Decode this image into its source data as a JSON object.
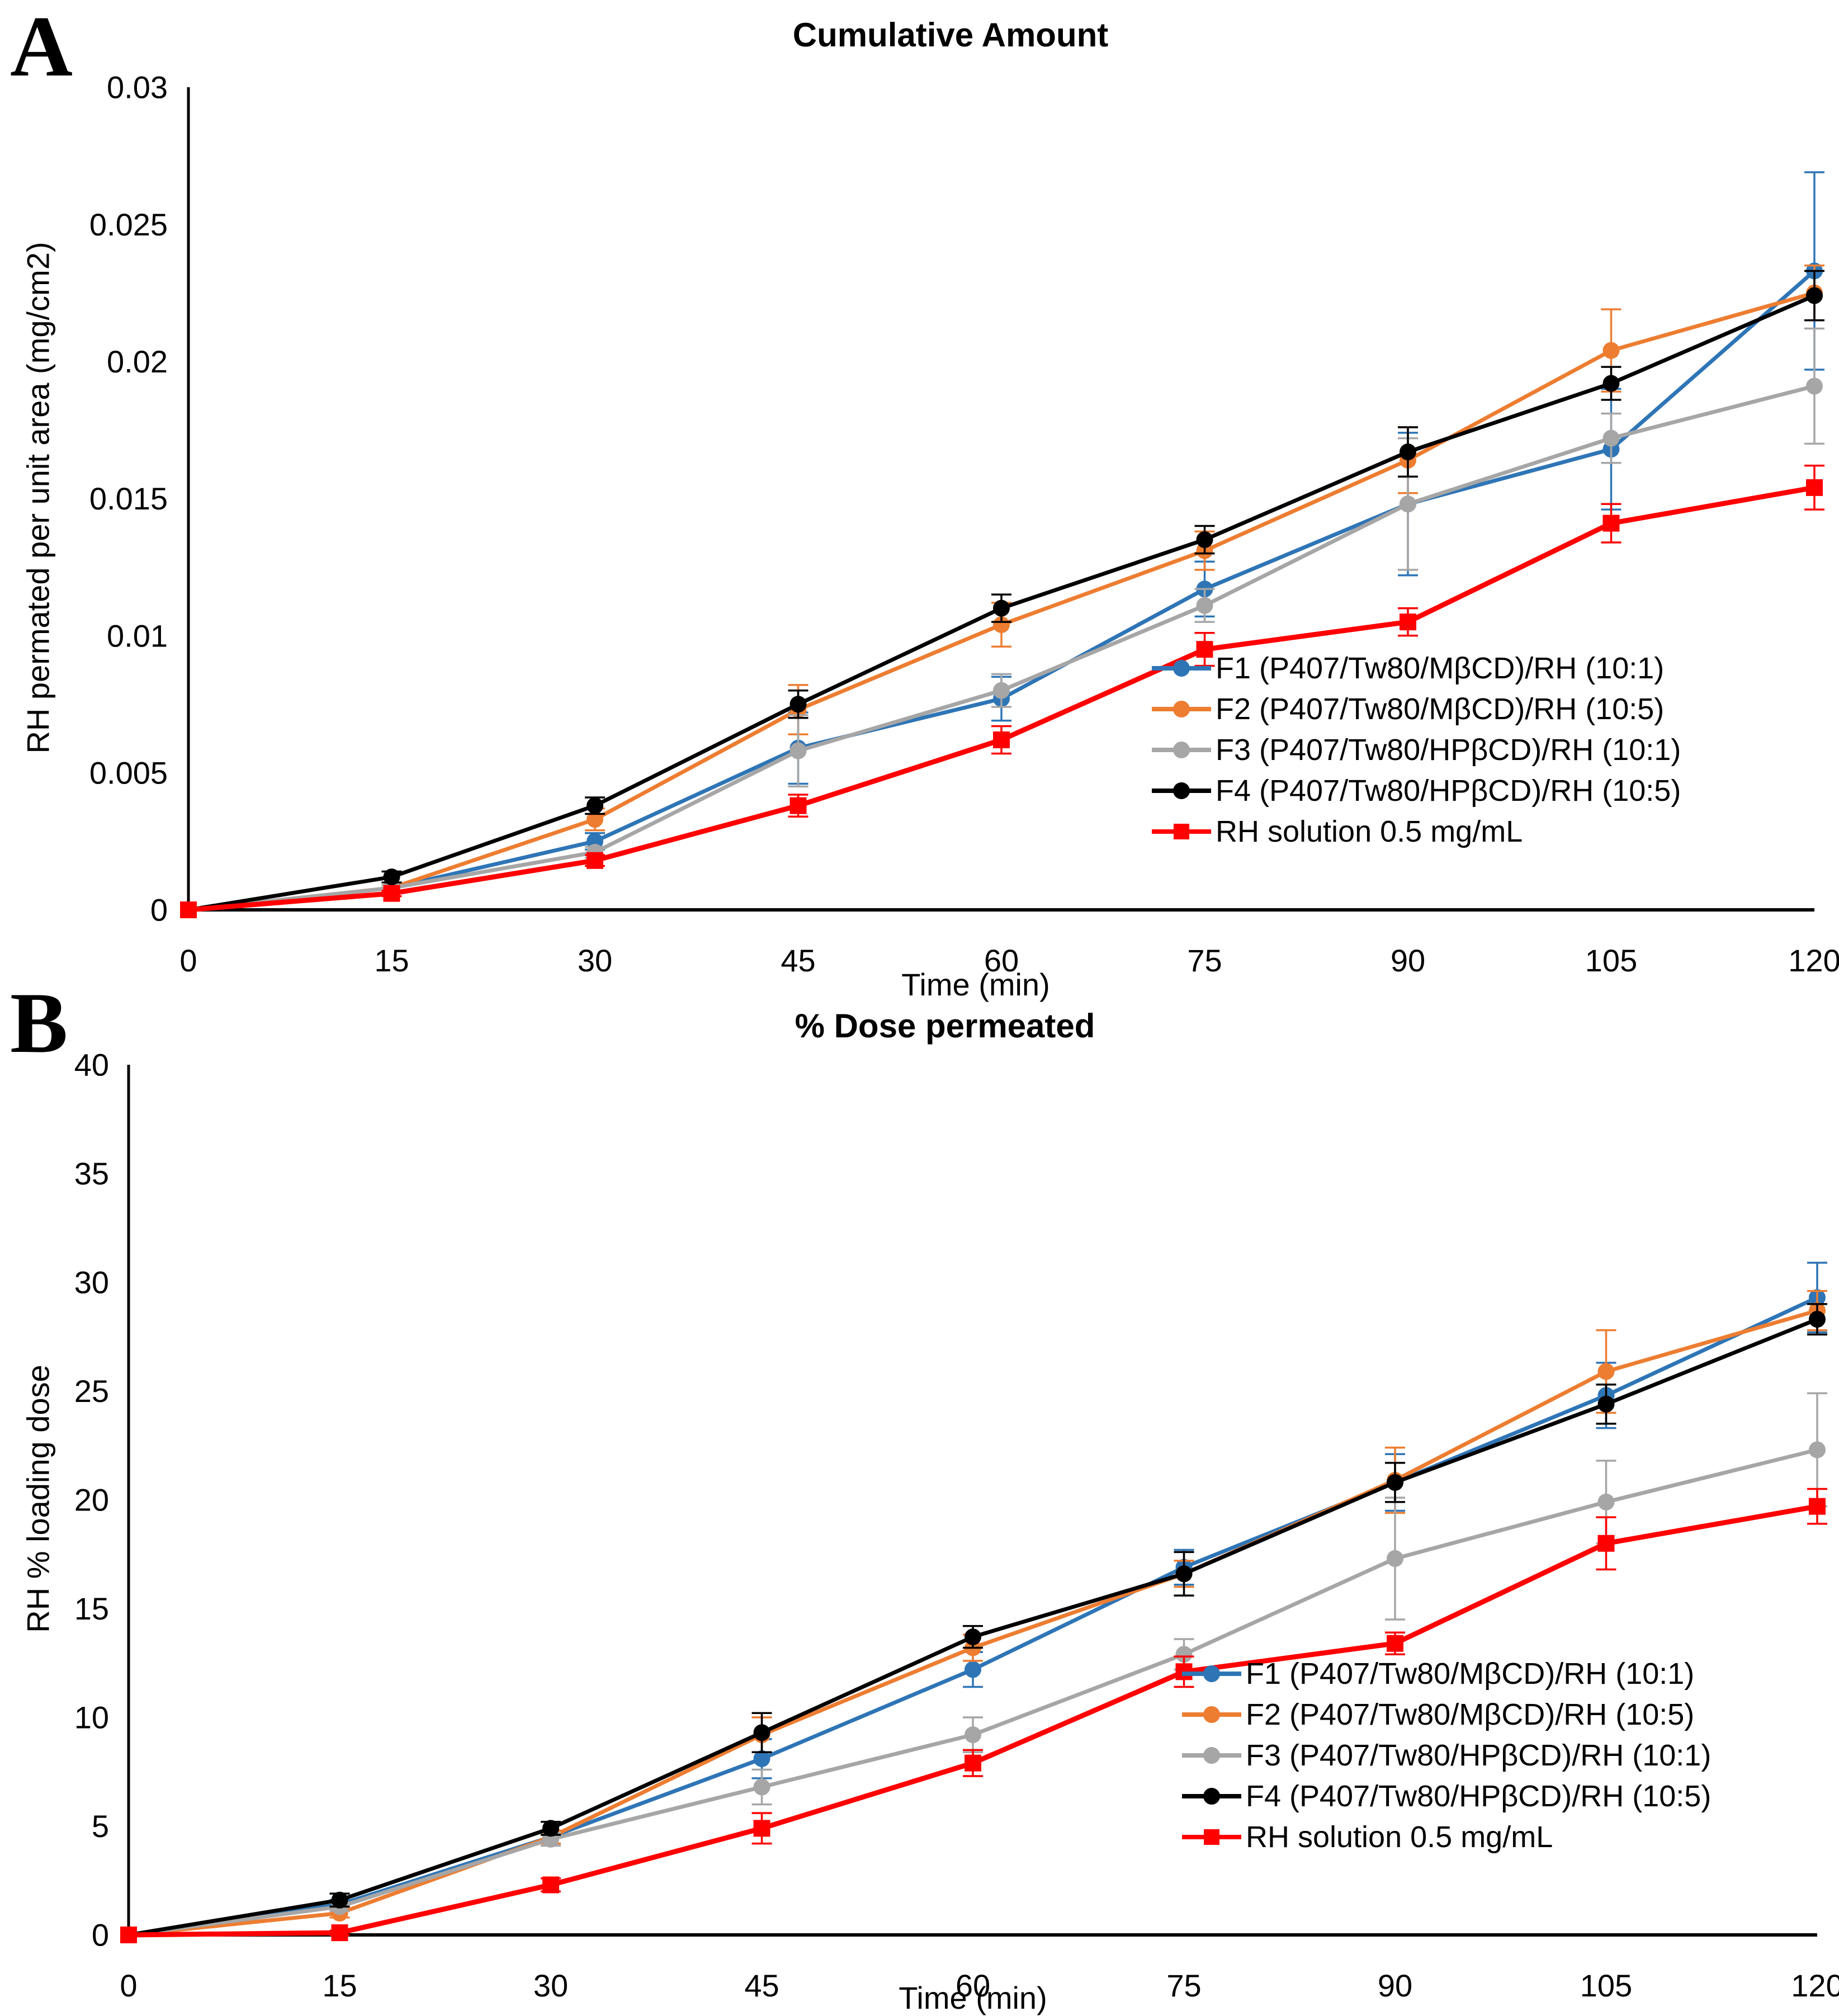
{
  "chart_data": [
    {
      "panel_letter": "A",
      "type": "line",
      "title": "Cumulative Amount",
      "xlabel": "Time (min)",
      "ylabel": "RH permated per unit area (mg/cm2)",
      "x": [
        0,
        15,
        30,
        45,
        60,
        75,
        90,
        105,
        120
      ],
      "xtick_labels": [
        "0",
        "15",
        "30",
        "45",
        "60",
        "75",
        "90",
        "105",
        "120"
      ],
      "ylim": [
        0,
        0.03
      ],
      "ytick_values": [
        0,
        0.005,
        0.01,
        0.015,
        0.02,
        0.025,
        0.03
      ],
      "ytick_labels": [
        "0",
        "0.005",
        "0.01",
        "0.015",
        "0.02",
        "0.025",
        "0.03"
      ],
      "grid": false,
      "legend_position": "inside-lower-right",
      "series": [
        {
          "name": "F1 (P407/Tw80/MβCD)/RH (10:1)",
          "color": "#2E75B6",
          "marker": "circle",
          "values": [
            0,
            0.0008,
            0.0025,
            0.0059,
            0.0077,
            0.0117,
            0.0148,
            0.0168,
            0.0233
          ],
          "err": [
            0,
            0.0001,
            0.0003,
            0.0013,
            0.0008,
            0.001,
            0.0026,
            0.0022,
            0.0036
          ]
        },
        {
          "name": "F2 (P407/Tw80/MβCD)/RH (10:5)",
          "color": "#ED7D31",
          "marker": "circle",
          "values": [
            0,
            0.0008,
            0.0033,
            0.0073,
            0.0104,
            0.0131,
            0.0164,
            0.0204,
            0.0225
          ],
          "err": [
            0,
            0.0001,
            0.0004,
            0.0009,
            0.0008,
            0.0007,
            0.0012,
            0.0015,
            0.001
          ]
        },
        {
          "name": "F3 (P407/Tw80/HPβCD)/RH (10:1)",
          "color": "#A6A6A6",
          "marker": "circle",
          "values": [
            0,
            0.0008,
            0.0021,
            0.0058,
            0.008,
            0.0111,
            0.0148,
            0.0172,
            0.0191
          ],
          "err": [
            0,
            0.0001,
            0.0002,
            0.0013,
            0.0006,
            0.0006,
            0.0024,
            0.0009,
            0.0021
          ]
        },
        {
          "name": "F4 (P407/Tw80/HPβCD)/RH (10:5)",
          "color": "#000000",
          "marker": "circle",
          "values": [
            0,
            0.0012,
            0.0038,
            0.0075,
            0.011,
            0.0135,
            0.0167,
            0.0192,
            0.0224
          ],
          "err": [
            0,
            0.0002,
            0.0003,
            0.0005,
            0.0005,
            0.0005,
            0.0009,
            0.0006,
            0.0009
          ]
        },
        {
          "name": "RH solution 0.5 mg/mL",
          "color": "#FF0000",
          "marker": "square",
          "values": [
            0,
            0.0006,
            0.0018,
            0.0038,
            0.0062,
            0.0095,
            0.0105,
            0.0141,
            0.0154
          ],
          "err": [
            0,
            0.0001,
            0.0002,
            0.0004,
            0.0005,
            0.0006,
            0.0005,
            0.0007,
            0.0008
          ]
        }
      ]
    },
    {
      "panel_letter": "B",
      "type": "line",
      "title": "% Dose permeated",
      "xlabel": "Time (min)",
      "ylabel": "RH % loading dose",
      "x": [
        0,
        15,
        30,
        45,
        60,
        75,
        90,
        105,
        120
      ],
      "xtick_labels": [
        "0",
        "15",
        "30",
        "45",
        "60",
        "75",
        "90",
        "105",
        "120"
      ],
      "ylim": [
        0,
        40
      ],
      "ytick_values": [
        0,
        5,
        10,
        15,
        20,
        25,
        30,
        35,
        40
      ],
      "ytick_labels": [
        "0",
        "5",
        "10",
        "15",
        "20",
        "25",
        "30",
        "35",
        "40"
      ],
      "grid": false,
      "legend_position": "inside-lower-right",
      "series": [
        {
          "name": "F1 (P407/Tw80/MβCD)/RH (10:1)",
          "color": "#2E75B6",
          "marker": "circle",
          "values": [
            0,
            1.4,
            4.5,
            8.1,
            12.2,
            16.9,
            20.8,
            24.8,
            29.3
          ],
          "err": [
            0,
            0.2,
            0.3,
            0.9,
            0.8,
            0.8,
            1.3,
            1.5,
            1.6
          ]
        },
        {
          "name": "F2 (P407/Tw80/MβCD)/RH (10:5)",
          "color": "#ED7D31",
          "marker": "circle",
          "values": [
            0,
            1.0,
            4.5,
            9.2,
            13.2,
            16.6,
            20.9,
            25.9,
            28.7
          ],
          "err": [
            0,
            0.2,
            0.3,
            0.8,
            0.6,
            0.6,
            1.5,
            1.9,
            0.9
          ]
        },
        {
          "name": "F3 (P407/Tw80/HPβCD)/RH (10:1)",
          "color": "#A6A6A6",
          "marker": "circle",
          "values": [
            0,
            1.3,
            4.4,
            6.8,
            9.2,
            12.9,
            17.3,
            19.9,
            22.3
          ],
          "err": [
            0,
            0.2,
            0.3,
            0.8,
            0.8,
            0.7,
            2.8,
            1.9,
            2.6
          ]
        },
        {
          "name": "F4 (P407/Tw80/HPβCD)/RH (10:5)",
          "color": "#000000",
          "marker": "circle",
          "values": [
            0,
            1.6,
            4.9,
            9.3,
            13.7,
            16.6,
            20.8,
            24.4,
            28.3
          ],
          "err": [
            0,
            0.3,
            0.3,
            0.9,
            0.5,
            1.0,
            0.9,
            0.9,
            0.7
          ]
        },
        {
          "name": "RH solution 0.5 mg/mL",
          "color": "#FF0000",
          "marker": "square",
          "values": [
            0,
            0.1,
            2.3,
            4.9,
            7.9,
            12.1,
            13.4,
            18.0,
            19.7
          ],
          "err": [
            0,
            0.1,
            0.3,
            0.7,
            0.6,
            0.7,
            0.5,
            1.2,
            0.8
          ]
        }
      ]
    }
  ],
  "styles": {
    "axis_color": "#000000",
    "background": "#ffffff"
  }
}
